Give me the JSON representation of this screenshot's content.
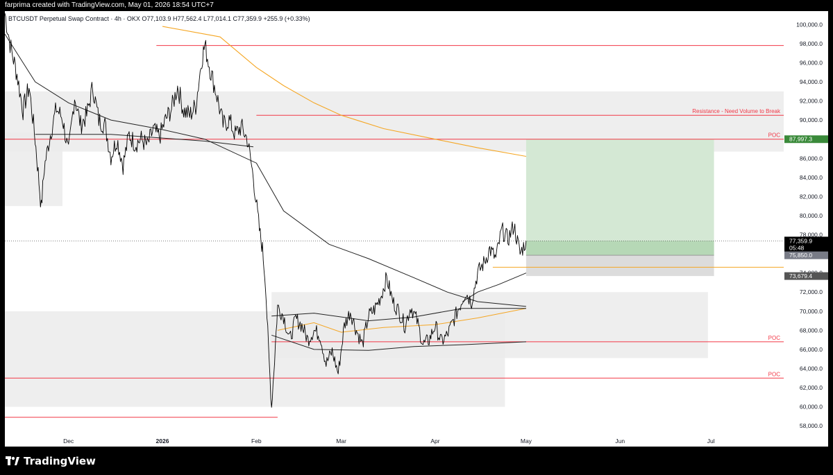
{
  "header": {
    "credit": "farprima created with TradingView.com, May 01, 2026 18:54 UTC+7"
  },
  "footer": {
    "brand": "TradingView"
  },
  "colors": {
    "resistance": "#f23645",
    "ema_orange": "#f5a623",
    "profit_zone": "#d4e8d4",
    "profit_label": "#3a8a3a",
    "current_price_label": "#000000",
    "stop_label": "#787b86",
    "volume_profile": "#ebebeb"
  },
  "chart_data": {
    "type": "line",
    "title": "BTCUSDT Perpetual Swap Contract · 4h · OKX",
    "ohlc": {
      "open": "O77,103.9",
      "high": "H77,562.4",
      "low": "L77,014.1",
      "close": "C77,359.9",
      "change": "+255.9 (+0.33%)"
    },
    "x_axis": {
      "range": [
        "2025-11-10",
        "2026-07-25"
      ],
      "ticks": [
        {
          "label": "Dec",
          "date": "2025-12-01",
          "bold": false
        },
        {
          "label": "2026",
          "date": "2026-01-01",
          "bold": true
        },
        {
          "label": "Feb",
          "date": "2026-02-01",
          "bold": false
        },
        {
          "label": "Mar",
          "date": "2026-03-01",
          "bold": false
        },
        {
          "label": "Apr",
          "date": "2026-04-01",
          "bold": false
        },
        {
          "label": "May",
          "date": "2026-05-01",
          "bold": false
        },
        {
          "label": "Jun",
          "date": "2026-06-01",
          "bold": false
        },
        {
          "label": "Jul",
          "date": "2026-07-01",
          "bold": false
        }
      ]
    },
    "y_axis": {
      "range": [
        57000,
        101400
      ],
      "ticks": [
        "58,000.0",
        "60,000.0",
        "62,000.0",
        "64,000.0",
        "66,000.0",
        "68,000.0",
        "70,000.0",
        "72,000.0",
        "74,000.0",
        "76,000.0",
        "78,000.0",
        "80,000.0",
        "82,000.0",
        "84,000.0",
        "86,000.0",
        "88,000.0",
        "90,000.0",
        "92,000.0",
        "94,000.0",
        "96,000.0",
        "98,000.0",
        "100,000.0"
      ]
    },
    "price_path": [
      [
        "2025-11-10",
        101200
      ],
      [
        "2025-11-12",
        97500
      ],
      [
        "2025-11-14",
        94800
      ],
      [
        "2025-11-16",
        91000
      ],
      [
        "2025-11-18",
        93500
      ],
      [
        "2025-11-20",
        88000
      ],
      [
        "2025-11-21",
        84500
      ],
      [
        "2025-11-22",
        80800
      ],
      [
        "2025-11-23",
        85000
      ],
      [
        "2025-11-25",
        88500
      ],
      [
        "2025-11-27",
        91200
      ],
      [
        "2025-11-29",
        90200
      ],
      [
        "2025-12-01",
        86500
      ],
      [
        "2025-12-03",
        92500
      ],
      [
        "2025-12-05",
        89500
      ],
      [
        "2025-12-07",
        90500
      ],
      [
        "2025-12-09",
        93500
      ],
      [
        "2025-12-11",
        90000
      ],
      [
        "2025-12-13",
        89500
      ],
      [
        "2025-12-15",
        86200
      ],
      [
        "2025-12-17",
        88000
      ],
      [
        "2025-12-19",
        85300
      ],
      [
        "2025-12-21",
        88500
      ],
      [
        "2025-12-23",
        87500
      ],
      [
        "2025-12-25",
        88000
      ],
      [
        "2025-12-27",
        87300
      ],
      [
        "2025-12-29",
        89000
      ],
      [
        "2025-12-31",
        88200
      ],
      [
        "2026-01-02",
        90000
      ],
      [
        "2026-01-04",
        91200
      ],
      [
        "2026-01-06",
        93500
      ],
      [
        "2026-01-08",
        91000
      ],
      [
        "2026-01-10",
        90500
      ],
      [
        "2026-01-12",
        91500
      ],
      [
        "2026-01-14",
        96500
      ],
      [
        "2026-01-15",
        97800
      ],
      [
        "2026-01-17",
        95000
      ],
      [
        "2026-01-19",
        92500
      ],
      [
        "2026-01-21",
        89500
      ],
      [
        "2026-01-23",
        90000
      ],
      [
        "2026-01-25",
        88500
      ],
      [
        "2026-01-27",
        89300
      ],
      [
        "2026-01-29",
        88000
      ],
      [
        "2026-01-31",
        84000
      ],
      [
        "2026-02-02",
        78500
      ],
      [
        "2026-02-03",
        76500
      ],
      [
        "2026-02-04",
        73000
      ],
      [
        "2026-02-05",
        66000
      ],
      [
        "2026-02-06",
        60000
      ],
      [
        "2026-02-07",
        65000
      ],
      [
        "2026-02-08",
        70500
      ],
      [
        "2026-02-10",
        69500
      ],
      [
        "2026-02-12",
        67000
      ],
      [
        "2026-02-14",
        69200
      ],
      [
        "2026-02-16",
        68500
      ],
      [
        "2026-02-18",
        67000
      ],
      [
        "2026-02-20",
        68000
      ],
      [
        "2026-02-22",
        67500
      ],
      [
        "2026-02-24",
        64500
      ],
      [
        "2026-02-26",
        65800
      ],
      [
        "2026-02-28",
        63500
      ],
      [
        "2026-03-02",
        68500
      ],
      [
        "2026-03-04",
        70000
      ],
      [
        "2026-03-06",
        68000
      ],
      [
        "2026-03-08",
        66500
      ],
      [
        "2026-03-10",
        69500
      ],
      [
        "2026-03-12",
        70200
      ],
      [
        "2026-03-14",
        71500
      ],
      [
        "2026-03-16",
        73500
      ],
      [
        "2026-03-18",
        71000
      ],
      [
        "2026-03-20",
        70000
      ],
      [
        "2026-03-22",
        68500
      ],
      [
        "2026-03-24",
        70500
      ],
      [
        "2026-03-26",
        69000
      ],
      [
        "2026-03-28",
        66500
      ],
      [
        "2026-03-30",
        67000
      ],
      [
        "2026-04-01",
        68500
      ],
      [
        "2026-04-03",
        66800
      ],
      [
        "2026-04-05",
        67500
      ],
      [
        "2026-04-07",
        69000
      ],
      [
        "2026-04-09",
        70500
      ],
      [
        "2026-04-11",
        72000
      ],
      [
        "2026-04-13",
        71000
      ],
      [
        "2026-04-15",
        74000
      ],
      [
        "2026-04-17",
        75000
      ],
      [
        "2026-04-19",
        76500
      ],
      [
        "2026-04-21",
        75500
      ],
      [
        "2026-04-23",
        78500
      ],
      [
        "2026-04-25",
        77500
      ],
      [
        "2026-04-27",
        79000
      ],
      [
        "2026-04-29",
        76000
      ],
      [
        "2026-05-01",
        77360
      ]
    ],
    "ema_orange_path": [
      [
        "2026-01-01",
        99800
      ],
      [
        "2026-01-20",
        98700
      ],
      [
        "2026-02-01",
        95500
      ],
      [
        "2026-02-10",
        93600
      ],
      [
        "2026-02-20",
        91800
      ],
      [
        "2026-03-01",
        90500
      ],
      [
        "2026-03-15",
        89100
      ],
      [
        "2026-04-01",
        88000
      ],
      [
        "2026-04-15",
        87100
      ],
      [
        "2026-05-01",
        86200
      ]
    ],
    "ema_orange_lower_path": [
      [
        "2026-02-08",
        68000
      ],
      [
        "2026-02-20",
        68800
      ],
      [
        "2026-03-01",
        67800
      ],
      [
        "2026-03-15",
        68300
      ],
      [
        "2026-04-01",
        68600
      ],
      [
        "2026-04-15",
        69300
      ],
      [
        "2026-05-01",
        70300
      ]
    ],
    "ma_dark_path": [
      [
        "2025-11-10",
        99000
      ],
      [
        "2025-11-20",
        94000
      ],
      [
        "2025-12-01",
        91800
      ],
      [
        "2025-12-15",
        90000
      ],
      [
        "2026-01-01",
        89000
      ],
      [
        "2026-01-15",
        88000
      ],
      [
        "2026-02-01",
        85500
      ],
      [
        "2026-02-10",
        80500
      ],
      [
        "2026-02-25",
        77000
      ],
      [
        "2026-03-10",
        75500
      ],
      [
        "2026-03-25",
        73500
      ],
      [
        "2026-04-05",
        72000
      ],
      [
        "2026-04-15",
        71000
      ],
      [
        "2026-05-01",
        70500
      ]
    ],
    "ma_rising_path": [
      [
        "2026-04-10",
        71000
      ],
      [
        "2026-04-15",
        72000
      ],
      [
        "2026-04-22",
        72800
      ],
      [
        "2026-05-01",
        74000
      ]
    ],
    "ma_long_path": [
      [
        "2025-11-20",
        88500
      ],
      [
        "2025-12-15",
        88500
      ],
      [
        "2026-01-15",
        87800
      ],
      [
        "2026-01-31",
        87200
      ]
    ],
    "ma_low_path": [
      [
        "2026-02-06",
        67500
      ],
      [
        "2026-02-20",
        66000
      ],
      [
        "2026-03-10",
        65900
      ],
      [
        "2026-03-25",
        66300
      ],
      [
        "2026-04-10",
        66500
      ],
      [
        "2026-05-01",
        66800
      ]
    ],
    "ma_mid_path": [
      [
        "2026-02-06",
        69500
      ],
      [
        "2026-02-20",
        69800
      ],
      [
        "2026-03-10",
        69000
      ],
      [
        "2026-03-25",
        69400
      ],
      [
        "2026-04-10",
        70300
      ],
      [
        "2026-05-01",
        70300
      ]
    ],
    "horizontal_levels": [
      {
        "name": "top-resistance",
        "price": 97800,
        "from": "2025-12-30",
        "to": "2026-07-25",
        "label": ""
      },
      {
        "name": "resistance-need-volume",
        "price": 90500,
        "from": "2026-02-01",
        "to": "2026-07-25",
        "label": "Resistance - Need Volume to Break"
      },
      {
        "name": "poc-upper",
        "price": 87997.3,
        "from": "2025-11-10",
        "to": "2026-07-25",
        "label": "POC"
      },
      {
        "name": "poc-middle",
        "price": 66800,
        "from": "2026-02-06",
        "to": "2026-07-25",
        "label": "POC"
      },
      {
        "name": "poc-lower",
        "price": 63000,
        "from": "2025-11-10",
        "to": "2026-07-25",
        "label": "POC"
      },
      {
        "name": "low-line",
        "price": 58900,
        "from": "2025-11-10",
        "to": "2026-02-08",
        "label": ""
      },
      {
        "name": "entry-line",
        "price": 74600,
        "from": "2026-04-20",
        "to": "2026-07-25",
        "label": ""
      }
    ],
    "volume_profile_zones": [
      {
        "from": "2025-11-10",
        "to": "2026-07-25",
        "top": 93000,
        "bottom": 86700
      },
      {
        "from": "2025-11-10",
        "to": "2025-11-29",
        "top": 88700,
        "bottom": 81000
      },
      {
        "from": "2026-02-06",
        "to": "2026-06-30",
        "top": 72000,
        "bottom": 65100
      },
      {
        "from": "2025-11-10",
        "to": "2026-04-24",
        "top": 70000,
        "bottom": 60000
      }
    ],
    "position": {
      "start": "2026-05-01",
      "end": "2026-07-02",
      "entry": 75850.0,
      "target": 87997.3,
      "stop": 73679.4,
      "current": 77359.9
    },
    "price_labels": {
      "current": "77,359.9",
      "countdown": "05:48",
      "entry": "75,850.0",
      "target": "87,997.3",
      "stop": "73,679.4"
    }
  }
}
